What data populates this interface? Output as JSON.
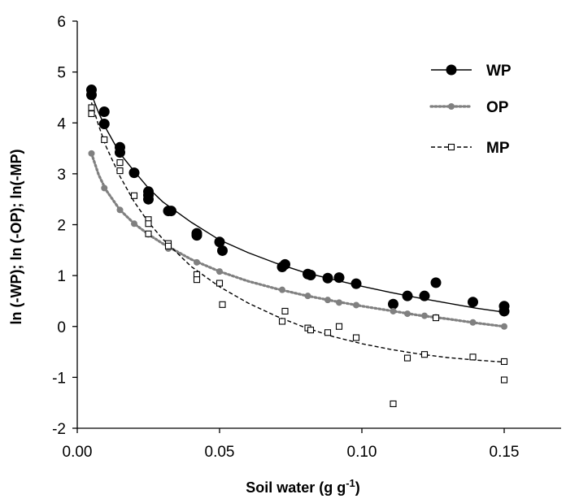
{
  "chart_data": {
    "type": "scatter",
    "xlabel": "Soil water (g g",
    "xlabel_sup": "-1",
    "xlabel_end": ")",
    "ylabel": "ln (-WP);  ln (-OP);  ln(-MP)",
    "xlim": [
      0,
      0.17
    ],
    "ylim": [
      -2,
      6
    ],
    "x_ticks": [
      0,
      0.05,
      0.1,
      0.15
    ],
    "x_tick_labels": [
      "0.00",
      "0.05",
      "0.10",
      "0.15"
    ],
    "y_ticks": [
      -2,
      -1,
      0,
      1,
      2,
      3,
      4,
      5,
      6
    ],
    "y_tick_labels": [
      "-2",
      "-1",
      "0",
      "1",
      "2",
      "3",
      "4",
      "5",
      "6"
    ],
    "grid": false,
    "legend_position": "top-right",
    "series": [
      {
        "name": "WP",
        "marker": "filled-circle",
        "color": "#000000",
        "line_style": "solid",
        "points": [
          [
            0.005,
            4.65
          ],
          [
            0.005,
            4.55
          ],
          [
            0.0095,
            4.22
          ],
          [
            0.0095,
            3.98
          ],
          [
            0.015,
            3.52
          ],
          [
            0.015,
            3.42
          ],
          [
            0.02,
            3.02
          ],
          [
            0.025,
            2.65
          ],
          [
            0.025,
            2.58
          ],
          [
            0.025,
            2.5
          ],
          [
            0.032,
            2.27
          ],
          [
            0.033,
            2.27
          ],
          [
            0.042,
            1.83
          ],
          [
            0.042,
            1.79
          ],
          [
            0.05,
            1.66
          ],
          [
            0.051,
            1.49
          ],
          [
            0.072,
            1.17
          ],
          [
            0.073,
            1.22
          ],
          [
            0.081,
            1.03
          ],
          [
            0.082,
            1.01
          ],
          [
            0.088,
            0.95
          ],
          [
            0.092,
            0.96
          ],
          [
            0.098,
            0.84
          ],
          [
            0.111,
            0.44
          ],
          [
            0.116,
            0.6
          ],
          [
            0.122,
            0.6
          ],
          [
            0.126,
            0.86
          ],
          [
            0.139,
            0.48
          ],
          [
            0.15,
            0.4
          ],
          [
            0.15,
            0.3
          ]
        ],
        "fit": [
          [
            0.005,
            4.56
          ],
          [
            0.0075,
            4.2
          ],
          [
            0.01,
            3.9
          ],
          [
            0.015,
            3.4
          ],
          [
            0.02,
            3.05
          ],
          [
            0.025,
            2.72
          ],
          [
            0.03,
            2.45
          ],
          [
            0.04,
            2.05
          ],
          [
            0.05,
            1.7
          ],
          [
            0.06,
            1.45
          ],
          [
            0.07,
            1.24
          ],
          [
            0.08,
            1.06
          ],
          [
            0.09,
            0.92
          ],
          [
            0.1,
            0.79
          ],
          [
            0.11,
            0.67
          ],
          [
            0.12,
            0.56
          ],
          [
            0.13,
            0.46
          ],
          [
            0.14,
            0.36
          ],
          [
            0.15,
            0.28
          ]
        ]
      },
      {
        "name": "OP",
        "marker": "gray-dot",
        "color": "#808080",
        "line_style": "dotted",
        "points": [
          [
            0.005,
            3.4
          ],
          [
            0.0095,
            2.72
          ],
          [
            0.015,
            2.29
          ],
          [
            0.02,
            2.02
          ],
          [
            0.025,
            1.81
          ],
          [
            0.032,
            1.53
          ],
          [
            0.042,
            1.26
          ],
          [
            0.05,
            1.08
          ],
          [
            0.072,
            0.72
          ],
          [
            0.081,
            0.6
          ],
          [
            0.088,
            0.52
          ],
          [
            0.092,
            0.47
          ],
          [
            0.098,
            0.42
          ],
          [
            0.111,
            0.3
          ],
          [
            0.116,
            0.25
          ],
          [
            0.122,
            0.21
          ],
          [
            0.126,
            0.18
          ],
          [
            0.139,
            0.08
          ],
          [
            0.15,
            0.0
          ]
        ],
        "fit": [
          [
            0.005,
            3.4
          ],
          [
            0.0075,
            2.98
          ],
          [
            0.01,
            2.69
          ],
          [
            0.015,
            2.29
          ],
          [
            0.02,
            2.02
          ],
          [
            0.025,
            1.81
          ],
          [
            0.03,
            1.63
          ],
          [
            0.04,
            1.32
          ],
          [
            0.05,
            1.08
          ],
          [
            0.06,
            0.89
          ],
          [
            0.07,
            0.74
          ],
          [
            0.08,
            0.61
          ],
          [
            0.09,
            0.5
          ],
          [
            0.1,
            0.4
          ],
          [
            0.11,
            0.31
          ],
          [
            0.12,
            0.22
          ],
          [
            0.13,
            0.15
          ],
          [
            0.14,
            0.07
          ],
          [
            0.15,
            0.0
          ]
        ]
      },
      {
        "name": "MP",
        "marker": "open-square",
        "color": "#000000",
        "line_style": "dashed",
        "points": [
          [
            0.005,
            4.3
          ],
          [
            0.005,
            4.18
          ],
          [
            0.0095,
            3.67
          ],
          [
            0.015,
            3.22
          ],
          [
            0.015,
            3.06
          ],
          [
            0.02,
            2.57
          ],
          [
            0.025,
            2.1
          ],
          [
            0.025,
            2.02
          ],
          [
            0.025,
            1.82
          ],
          [
            0.032,
            1.63
          ],
          [
            0.032,
            1.58
          ],
          [
            0.042,
            1.02
          ],
          [
            0.042,
            0.92
          ],
          [
            0.05,
            0.85
          ],
          [
            0.051,
            0.43
          ],
          [
            0.072,
            0.1
          ],
          [
            0.073,
            0.3
          ],
          [
            0.081,
            -0.03
          ],
          [
            0.082,
            -0.07
          ],
          [
            0.088,
            -0.12
          ],
          [
            0.092,
            0.0
          ],
          [
            0.098,
            -0.22
          ],
          [
            0.111,
            -1.52
          ],
          [
            0.116,
            -0.62
          ],
          [
            0.122,
            -0.55
          ],
          [
            0.126,
            0.17
          ],
          [
            0.139,
            -0.6
          ],
          [
            0.15,
            -0.69
          ],
          [
            0.15,
            -1.05
          ]
        ],
        "fit": [
          [
            0.005,
            4.4
          ],
          [
            0.0075,
            3.95
          ],
          [
            0.01,
            3.55
          ],
          [
            0.015,
            2.95
          ],
          [
            0.02,
            2.45
          ],
          [
            0.025,
            2.05
          ],
          [
            0.03,
            1.72
          ],
          [
            0.04,
            1.18
          ],
          [
            0.05,
            0.78
          ],
          [
            0.06,
            0.46
          ],
          [
            0.07,
            0.2
          ],
          [
            0.08,
            -0.02
          ],
          [
            0.09,
            -0.2
          ],
          [
            0.1,
            -0.34
          ],
          [
            0.11,
            -0.45
          ],
          [
            0.12,
            -0.54
          ],
          [
            0.13,
            -0.61
          ],
          [
            0.14,
            -0.66
          ],
          [
            0.15,
            -0.7
          ]
        ]
      }
    ]
  }
}
